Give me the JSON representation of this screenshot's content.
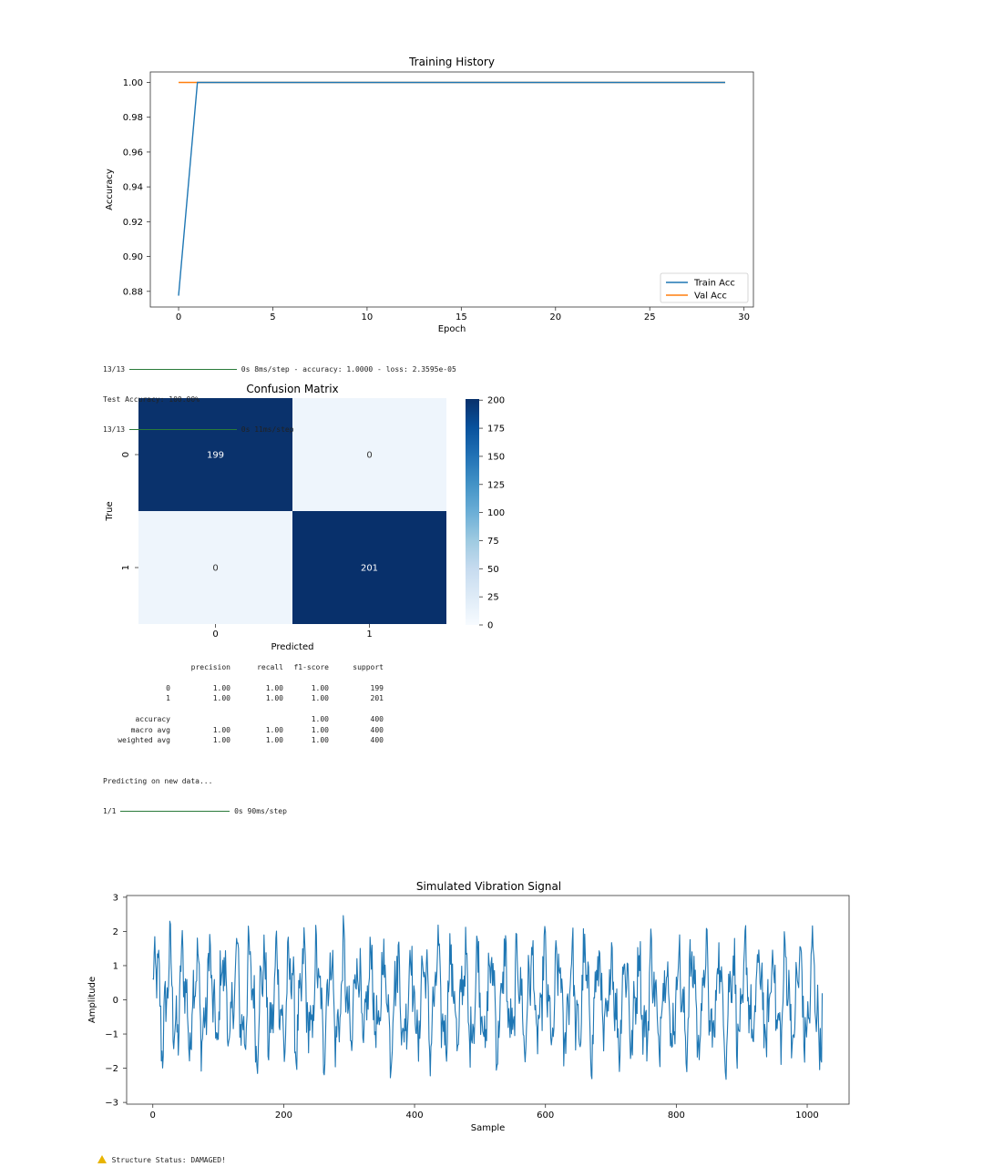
{
  "chart_data": [
    {
      "type": "line",
      "title": "Training History",
      "xlabel": "Epoch",
      "ylabel": "Accuracy",
      "xlim": [
        -1.5,
        30.5
      ],
      "ylim": [
        0.871,
        1.006
      ],
      "xticks": [
        0,
        5,
        10,
        15,
        20,
        25,
        30
      ],
      "yticks": [
        0.88,
        0.9,
        0.92,
        0.94,
        0.96,
        0.98,
        1.0
      ],
      "ytick_labels": [
        "0.88",
        "0.90",
        "0.92",
        "0.94",
        "0.96",
        "0.98",
        "1.00"
      ],
      "legend": "lower-right",
      "series": [
        {
          "name": "Train Acc",
          "color": "#1f77b4",
          "x": [
            0,
            1,
            2,
            3,
            4,
            5,
            6,
            7,
            8,
            9,
            10,
            11,
            12,
            13,
            14,
            15,
            16,
            17,
            18,
            19,
            20,
            21,
            22,
            23,
            24,
            25,
            26,
            27,
            28,
            29
          ],
          "y": [
            0.8775,
            1.0,
            1.0,
            1.0,
            1.0,
            1.0,
            1.0,
            1.0,
            1.0,
            1.0,
            1.0,
            1.0,
            1.0,
            1.0,
            1.0,
            1.0,
            1.0,
            1.0,
            1.0,
            1.0,
            1.0,
            1.0,
            1.0,
            1.0,
            1.0,
            1.0,
            1.0,
            1.0,
            1.0,
            1.0
          ]
        },
        {
          "name": "Val Acc",
          "color": "#ff7f0e",
          "x": [
            0,
            1,
            2,
            3,
            4,
            5,
            6,
            7,
            8,
            9,
            10,
            11,
            12,
            13,
            14,
            15,
            16,
            17,
            18,
            19,
            20,
            21,
            22,
            23,
            24,
            25,
            26,
            27,
            28,
            29
          ],
          "y": [
            1.0,
            1.0,
            1.0,
            1.0,
            1.0,
            1.0,
            1.0,
            1.0,
            1.0,
            1.0,
            1.0,
            1.0,
            1.0,
            1.0,
            1.0,
            1.0,
            1.0,
            1.0,
            1.0,
            1.0,
            1.0,
            1.0,
            1.0,
            1.0,
            1.0,
            1.0,
            1.0,
            1.0,
            1.0,
            1.0
          ]
        }
      ]
    },
    {
      "type": "heatmap",
      "title": "Confusion Matrix",
      "xlabel": "Predicted",
      "ylabel": "True",
      "x_labels": [
        "0",
        "1"
      ],
      "y_labels": [
        "0",
        "1"
      ],
      "values": [
        [
          199,
          0
        ],
        [
          0,
          201
        ]
      ],
      "colorbar_range": [
        0,
        201
      ],
      "colorbar_ticks": [
        0,
        25,
        50,
        75,
        100,
        125,
        150,
        175,
        200
      ],
      "colormap": "Blues"
    },
    {
      "type": "line",
      "title": "Simulated Vibration Signal",
      "xlabel": "Sample",
      "ylabel": "Amplitude",
      "xlim": [
        -40,
        1064
      ],
      "ylim": [
        -3.05,
        3.05
      ],
      "xticks": [
        0,
        200,
        400,
        600,
        800,
        1000
      ],
      "yticks": [
        -3,
        -2,
        -1,
        0,
        1,
        2,
        3
      ],
      "ytick_labels": [
        "−3",
        "−2",
        "−1",
        "0",
        "1",
        "2",
        "3"
      ],
      "series": [
        {
          "color": "#1f77b4",
          "n_samples": 1024,
          "amplitude_range": [
            -2.8,
            2.85
          ]
        }
      ]
    }
  ],
  "console": {
    "line1_prefix": "13/13",
    "line1_suffix": "0s 8ms/step - accuracy: 1.0000 - loss: 2.3595e-05",
    "line2": "Test Accuracy: 100.00%",
    "line3_prefix": "13/13",
    "line3_suffix": "0s 11ms/step",
    "predicting": "Predicting on new data...",
    "line4_prefix": "1/1",
    "line4_suffix": "0s 90ms/step",
    "status": "Structure Status: DAMAGED!"
  },
  "report": {
    "header": [
      "",
      "precision",
      "recall",
      "f1-score",
      "support"
    ],
    "rows": [
      [
        "0",
        "1.00",
        "1.00",
        "1.00",
        "199"
      ],
      [
        "1",
        "1.00",
        "1.00",
        "1.00",
        "201"
      ],
      [
        "",
        "",
        "",
        "",
        ""
      ],
      [
        "accuracy",
        "",
        "",
        "1.00",
        "400"
      ],
      [
        "macro avg",
        "1.00",
        "1.00",
        "1.00",
        "400"
      ],
      [
        "weighted avg",
        "1.00",
        "1.00",
        "1.00",
        "400"
      ]
    ]
  },
  "colors": {
    "train": "#1f77b4",
    "val": "#ff7f0e",
    "heat_high": "#08306b",
    "heat_low": "#f7fbff",
    "progress": "#2a7a3a",
    "warning": "#e8b400"
  }
}
